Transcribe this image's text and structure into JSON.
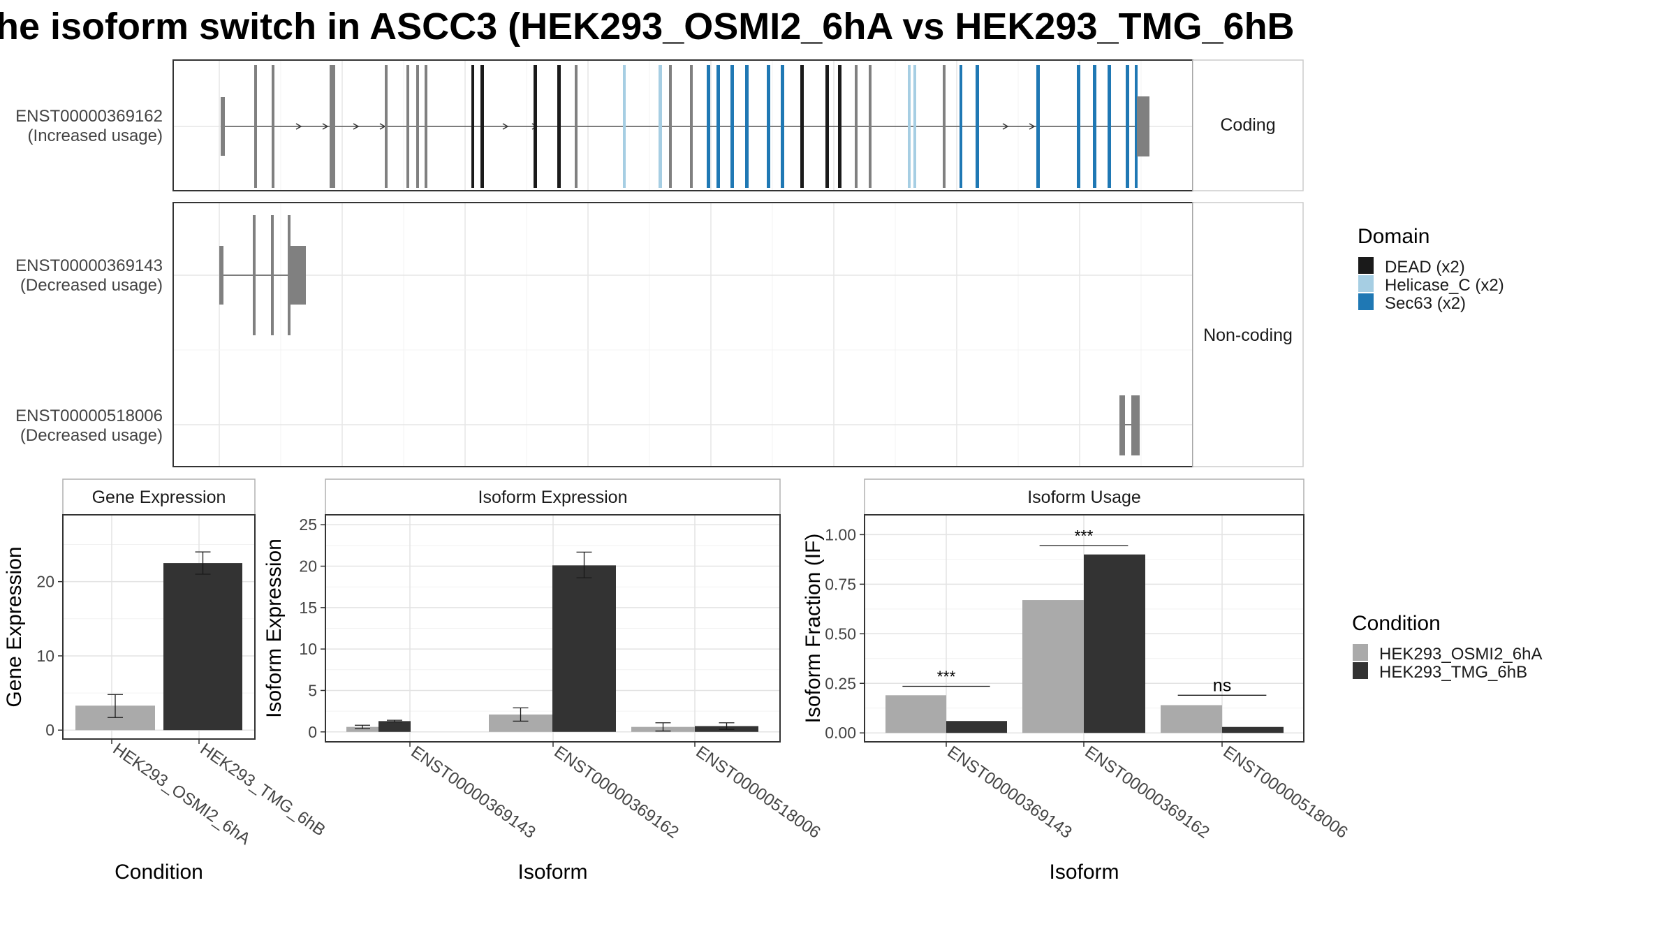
{
  "title": "he isoform switch in ASCC3 (HEK293_OSMI2_6hA vs HEK293_TMG_6hB",
  "structure": {
    "transcripts": [
      {
        "id": "ENST00000369162",
        "usage": "(Increased usage)",
        "group": "Coding"
      },
      {
        "id": "ENST00000369143",
        "usage": "(Decreased usage)",
        "group": "Non-coding"
      },
      {
        "id": "ENST00000518006",
        "usage": "(Decreased usage)",
        "group": "Non-coding"
      }
    ],
    "strips": [
      "Coding",
      "Non-coding"
    ]
  },
  "domain_legend": {
    "title": "Domain",
    "items": [
      {
        "label": "DEAD (x2)",
        "color": "#1a1a1a"
      },
      {
        "label": "Helicase_C (x2)",
        "color": "#a6cee3"
      },
      {
        "label": "Sec63 (x2)",
        "color": "#1f78b4"
      }
    ]
  },
  "condition_legend": {
    "title": "Condition",
    "items": [
      {
        "label": "HEK293_OSMI2_6hA",
        "color": "#aaaaaa"
      },
      {
        "label": "HEK293_TMG_6hB",
        "color": "#333333"
      }
    ]
  },
  "chart_data": [
    {
      "type": "bar",
      "panel": "Gene Expression",
      "xlabel": "Condition",
      "ylabel": "Gene Expression",
      "categories": [
        "HEK293_OSMI2_6hA",
        "HEK293_TMG_6hB"
      ],
      "values": [
        3.3,
        22.5
      ],
      "error": [
        [
          1.7,
          4.8
        ],
        [
          21.0,
          24.0
        ]
      ],
      "colors": [
        "#aaaaaa",
        "#333333"
      ],
      "ylim": [
        -1.2,
        29
      ],
      "yticks": [
        0,
        10,
        20
      ]
    },
    {
      "type": "bar",
      "panel": "Isoform Expression",
      "xlabel": "Isoform",
      "ylabel": "Isoform Expression",
      "categories": [
        "ENST00000369143",
        "ENST00000369162",
        "ENST00000518006"
      ],
      "series": [
        {
          "name": "HEK293_OSMI2_6hA",
          "values": [
            0.6,
            2.1,
            0.6
          ],
          "error": [
            [
              0.4,
              0.8
            ],
            [
              1.3,
              2.9
            ],
            [
              0.1,
              1.1
            ]
          ]
        },
        {
          "name": "HEK293_TMG_6hB",
          "values": [
            1.3,
            20.1,
            0.7
          ],
          "error": [
            [
              1.2,
              1.4
            ],
            [
              18.6,
              21.7
            ],
            [
              0.3,
              1.1
            ]
          ]
        }
      ],
      "ylim": [
        -1.2,
        26.2
      ],
      "yticks": [
        0,
        5,
        10,
        15,
        20,
        25
      ]
    },
    {
      "type": "bar",
      "panel": "Isoform Usage",
      "xlabel": "Isoform",
      "ylabel": "Isoform Fraction (IF)",
      "categories": [
        "ENST00000369143",
        "ENST00000369162",
        "ENST00000518006"
      ],
      "series": [
        {
          "name": "HEK293_OSMI2_6hA",
          "values": [
            0.19,
            0.67,
            0.14
          ]
        },
        {
          "name": "HEK293_TMG_6hB",
          "values": [
            0.06,
            0.9,
            0.03
          ]
        }
      ],
      "significance": [
        "***",
        "***",
        "ns"
      ],
      "sig_y": [
        0.235,
        0.945,
        0.19
      ],
      "ylim": [
        -0.045,
        1.1
      ],
      "yticks": [
        0.0,
        0.25,
        0.5,
        0.75,
        1.0
      ],
      "ytick_labels": [
        "0.00",
        "0.25",
        "0.50",
        "0.75",
        "1.00"
      ]
    }
  ]
}
